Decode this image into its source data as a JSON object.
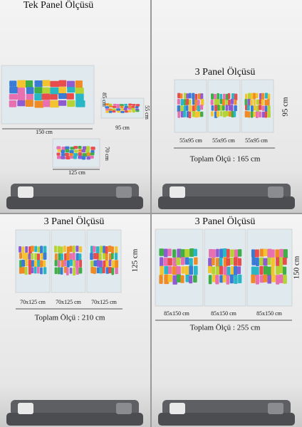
{
  "panels": [
    {
      "title": "Tek Panel Ölçüsü",
      "dims": [
        "85 cm",
        "150 cm",
        "55 cm",
        "95 cm",
        "70 cm",
        "125 cm"
      ]
    },
    {
      "title": "3 Panel Ölçüsü",
      "height": "95 cm",
      "sizes": [
        "55x95 cm",
        "55x95 cm",
        "55x95 cm"
      ],
      "total": "Toplam Ölçü : 165 cm"
    },
    {
      "title": "3 Panel Ölçüsü",
      "height": "125 cm",
      "sizes": [
        "70x125 cm",
        "70x125 cm",
        "70x125 cm"
      ],
      "total": "Toplam Ölçü : 210 cm"
    },
    {
      "title": "3 Panel Ölçüsü",
      "height": "150 cm",
      "sizes": [
        "85x150 cm",
        "85x150 cm",
        "85x150 cm"
      ],
      "total": "Toplam Ölçü : 255 cm"
    }
  ]
}
